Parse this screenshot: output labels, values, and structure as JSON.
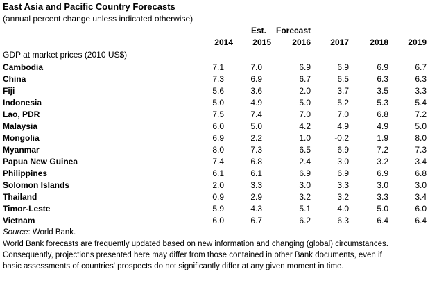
{
  "title": "East Asia and Pacific Country Forecasts",
  "subtitle": "(annual percent change unless indicated otherwise)",
  "header": {
    "est": "Est.",
    "forecast": "Forecast",
    "years": [
      "2014",
      "2015",
      "2016",
      "2017",
      "2018",
      "2019"
    ]
  },
  "gdp_label": "GDP at market prices (2010 US$)",
  "rows": [
    {
      "country": "Cambodia",
      "values": [
        "7.1",
        "7.0",
        "6.9",
        "6.9",
        "6.9",
        "6.7"
      ]
    },
    {
      "country": "China",
      "values": [
        "7.3",
        "6.9",
        "6.7",
        "6.5",
        "6.3",
        "6.3"
      ]
    },
    {
      "country": "Fiji",
      "values": [
        "5.6",
        "3.6",
        "2.0",
        "3.7",
        "3.5",
        "3.3"
      ]
    },
    {
      "country": "Indonesia",
      "values": [
        "5.0",
        "4.9",
        "5.0",
        "5.2",
        "5.3",
        "5.4"
      ]
    },
    {
      "country": "Lao, PDR",
      "values": [
        "7.5",
        "7.4",
        "7.0",
        "7.0",
        "6.8",
        "7.2"
      ]
    },
    {
      "country": "Malaysia",
      "values": [
        "6.0",
        "5.0",
        "4.2",
        "4.9",
        "4.9",
        "5.0"
      ]
    },
    {
      "country": "Mongolia",
      "values": [
        "6.9",
        "2.2",
        "1.0",
        "-0.2",
        "1.9",
        "8.0"
      ]
    },
    {
      "country": "Myanmar",
      "values": [
        "8.0",
        "7.3",
        "6.5",
        "6.9",
        "7.2",
        "7.3"
      ]
    },
    {
      "country": "Papua New Guinea",
      "values": [
        "7.4",
        "6.8",
        "2.4",
        "3.0",
        "3.2",
        "3.4"
      ]
    },
    {
      "country": "Philippines",
      "values": [
        "6.1",
        "6.1",
        "6.9",
        "6.9",
        "6.9",
        "6.8"
      ]
    },
    {
      "country": "Solomon Islands",
      "values": [
        "2.0",
        "3.3",
        "3.0",
        "3.3",
        "3.0",
        "3.0"
      ]
    },
    {
      "country": "Thailand",
      "values": [
        "0.9",
        "2.9",
        "3.2",
        "3.2",
        "3.3",
        "3.4"
      ]
    },
    {
      "country": "Timor-Leste",
      "values": [
        "5.9",
        "4.3",
        "5.1",
        "4.0",
        "5.0",
        "6.0"
      ]
    },
    {
      "country": "Vietnam",
      "values": [
        "6.0",
        "6.7",
        "6.2",
        "6.3",
        "6.4",
        "6.4"
      ]
    }
  ],
  "source": {
    "label": "Source",
    "text": ": World Bank."
  },
  "notes": [
    "World Bank forecasts are frequently updated based on new information and changing (global) circumstances.",
    "Consequently, projections presented here may differ from those contained in other Bank documents, even if",
    "basic assessments of countries' prospects do not significantly differ at any given moment in time."
  ]
}
